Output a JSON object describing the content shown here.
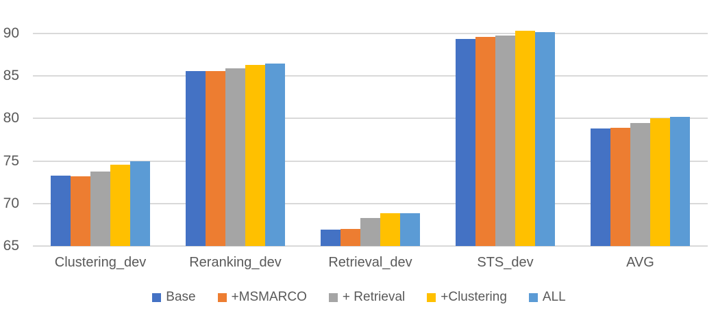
{
  "chart_data": {
    "type": "bar",
    "title": "",
    "xlabel": "",
    "ylabel": "",
    "categories": [
      "Clustering_dev",
      "Reranking_dev",
      "Retrieval_dev",
      "STS_dev",
      "AVG"
    ],
    "series": [
      {
        "name": "Base",
        "color": "#4472C4",
        "values": [
          73.3,
          85.6,
          66.9,
          89.4,
          78.8
        ]
      },
      {
        "name": "+MSMARCO",
        "color": "#ED7D31",
        "values": [
          73.2,
          85.6,
          67.0,
          89.6,
          78.9
        ]
      },
      {
        "name": "+ Retrieval",
        "color": "#A5A5A5",
        "values": [
          73.8,
          85.9,
          68.3,
          89.8,
          79.5
        ]
      },
      {
        "name": "+Clustering",
        "color": "#FFC000",
        "values": [
          74.6,
          86.3,
          68.9,
          90.3,
          80.0
        ]
      },
      {
        "name": "ALL",
        "color": "#5B9BD5",
        "values": [
          75.0,
          86.5,
          68.9,
          90.2,
          80.2
        ]
      }
    ],
    "y_axis": {
      "ticks": [
        90,
        85,
        80,
        75,
        70,
        65
      ]
    },
    "ylim": [
      65,
      90
    ],
    "grid": true,
    "legend_position": "bottom",
    "style": {
      "gridline_color": "#D9D9D9",
      "axis_text_color": "#595959",
      "background": "#ffffff"
    }
  }
}
